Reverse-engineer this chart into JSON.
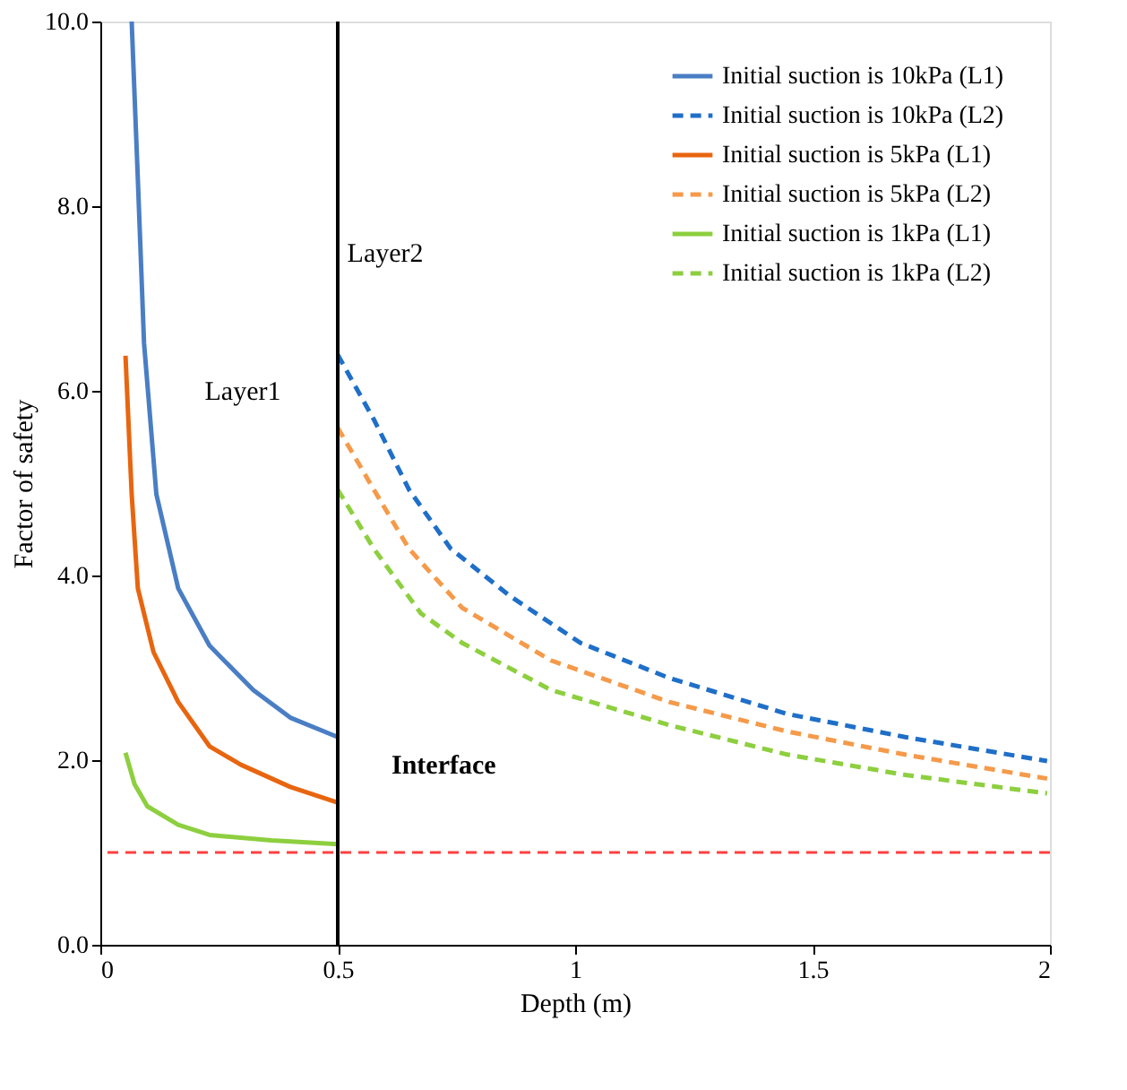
{
  "chart_data": {
    "type": "line",
    "xlabel": "Depth (m)",
    "ylabel": "Factor of safety",
    "xlim": [
      0,
      2
    ],
    "xticks": [
      0,
      0.5,
      1,
      1.5,
      2
    ],
    "ylim": [
      0,
      10
    ],
    "yticks": [
      {
        "value": 0,
        "label": "0.0"
      },
      {
        "value": 2,
        "label": "2.0"
      },
      {
        "value": 4,
        "label": "4.0"
      },
      {
        "value": 6,
        "label": "6.0"
      },
      {
        "value": 8,
        "label": "8.0"
      },
      {
        "value": 10,
        "label": "10.0"
      }
    ],
    "grid": false,
    "legend": "top right",
    "marker": "none",
    "series": [
      {
        "name": "Initial  suction is 10kPa  (L1)",
        "color": "#4a7ec4",
        "line_style": "solid",
        "x": [
          0.066,
          0.079,
          0.092,
          0.118,
          0.164,
          0.23,
          0.322,
          0.4,
          0.5
        ],
        "values": [
          10,
          8.29,
          6.52,
          4.88,
          3.86,
          3.24,
          2.76,
          2.46,
          2.25
        ]
      },
      {
        "name": "Initial  suction is 10kPa  (L2)",
        "color": "#1f6fc8",
        "line_style": "dashed",
        "x": [
          0.5,
          0.576,
          0.65,
          0.738,
          0.862,
          1.011,
          1.198,
          1.447,
          1.695,
          1.994
        ],
        "values": [
          6.39,
          5.69,
          4.93,
          4.29,
          3.78,
          3.27,
          2.89,
          2.5,
          2.25,
          1.99
        ]
      },
      {
        "name": "Initial  suction is 5kPa  (L1)",
        "color": "#e8650f",
        "line_style": "solid",
        "x": [
          0.053,
          0.066,
          0.079,
          0.112,
          0.164,
          0.23,
          0.296,
          0.4,
          0.5
        ],
        "values": [
          6.38,
          4.88,
          3.86,
          3.17,
          2.63,
          2.15,
          1.95,
          1.71,
          1.54
        ]
      },
      {
        "name": "Initial  suction is 5kPa  (L2)",
        "color": "#f59a4a",
        "line_style": "dashed",
        "x": [
          0.5,
          0.576,
          0.65,
          0.762,
          0.949,
          1.198,
          1.447,
          1.695,
          1.994
        ],
        "values": [
          5.6,
          4.93,
          4.29,
          3.65,
          3.08,
          2.63,
          2.31,
          2.06,
          1.8
        ]
      },
      {
        "name": "Initial  suction is 1kPa (L1)",
        "color": "#8dcf3f",
        "line_style": "solid",
        "x": [
          0.053,
          0.072,
          0.099,
          0.164,
          0.23,
          0.36,
          0.5
        ],
        "values": [
          2.08,
          1.74,
          1.5,
          1.3,
          1.19,
          1.13,
          1.09
        ]
      },
      {
        "name": "Initial  suction is 1kPa (L2)",
        "color": "#8dcf3f",
        "line_style": "dashed",
        "x": [
          0.5,
          0.576,
          0.675,
          0.762,
          0.949,
          1.198,
          1.447,
          1.695,
          1.994
        ],
        "values": [
          4.93,
          4.29,
          3.59,
          3.27,
          2.76,
          2.38,
          2.06,
          1.84,
          1.64
        ]
      }
    ],
    "ref_lines": [
      {
        "axis": "y",
        "value": 1.0,
        "color": "#ff4040",
        "line_style": "dashed"
      },
      {
        "axis": "x",
        "value": 0.5,
        "color": "#000000",
        "line_style": "solid"
      }
    ],
    "annotations": [
      "Layer1",
      "Layer2",
      {
        "text": "Interface",
        "x": 0.5,
        "y": 2.3
      }
    ]
  }
}
